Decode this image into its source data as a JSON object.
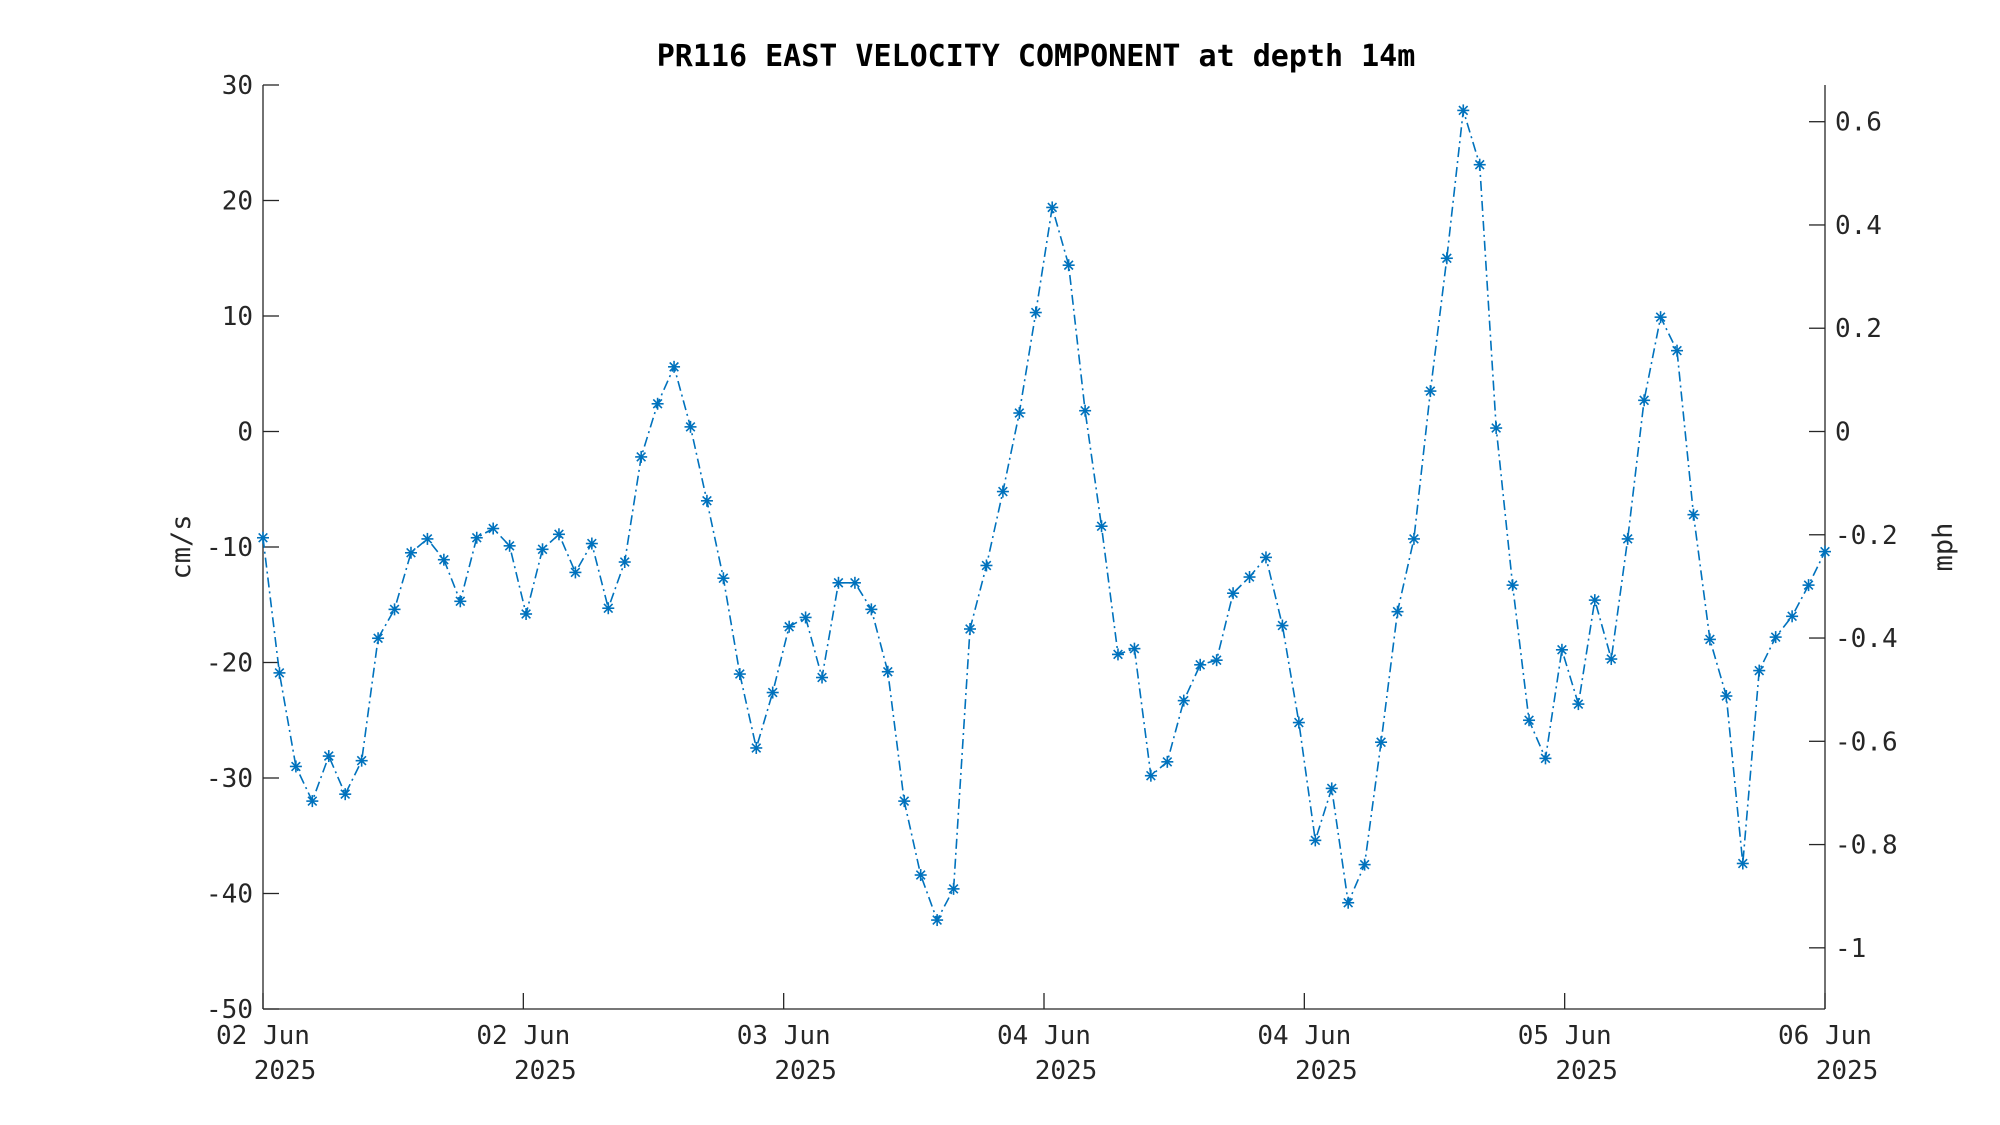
{
  "chart_data": {
    "type": "line",
    "title": "PR116 EAST VELOCITY COMPONENT at depth 14m",
    "ylabel": "cm/s",
    "ylabel_right": "mph",
    "ylim": [
      -50,
      30
    ],
    "yticks": [
      -50,
      -40,
      -30,
      -20,
      -10,
      0,
      10,
      20,
      30
    ],
    "yticks_right": [
      0.6,
      0.4,
      0.2,
      0,
      -0.2,
      -0.4,
      -0.6,
      -0.8,
      -1
    ],
    "yticks_right_labels": [
      "0.6",
      "0.4",
      "0.2",
      "0",
      "-0.2",
      "-0.4",
      "-0.6",
      "-0.8",
      "-1"
    ],
    "x_range_hours": [
      0,
      96
    ],
    "xticks": [
      {
        "day": "02 Jun",
        "year": "2025"
      },
      {
        "day": "02 Jun",
        "year": "2025"
      },
      {
        "day": "03 Jun",
        "year": "2025"
      },
      {
        "day": "04 Jun",
        "year": "2025"
      },
      {
        "day": "04 Jun",
        "year": "2025"
      },
      {
        "day": "05 Jun",
        "year": "2025"
      },
      {
        "day": "06 Jun",
        "year": "2025"
      }
    ],
    "grid": false,
    "series": [
      {
        "color": "#0072BD",
        "line_style": "dash-dot",
        "marker": "asterisk",
        "values": [
          -9.2,
          -20.9,
          -29.0,
          -32.0,
          -28.1,
          -31.4,
          -28.5,
          -17.9,
          -15.4,
          -10.5,
          -9.3,
          -11.1,
          -14.7,
          -9.2,
          -8.4,
          -9.9,
          -15.8,
          -10.2,
          -8.9,
          -12.2,
          -9.7,
          -15.3,
          -11.3,
          -2.2,
          2.4,
          5.6,
          0.4,
          -6.0,
          -12.7,
          -21.0,
          -27.4,
          -22.6,
          -16.9,
          -16.1,
          -21.3,
          -13.1,
          -13.1,
          -15.4,
          -20.8,
          -32.0,
          -38.4,
          -42.3,
          -39.6,
          -17.1,
          -11.6,
          -5.2,
          1.6,
          10.3,
          19.4,
          14.4,
          1.8,
          -8.2,
          -19.3,
          -18.8,
          -29.8,
          -28.6,
          -23.3,
          -20.2,
          -19.8,
          -14.0,
          -12.6,
          -10.9,
          -16.8,
          -25.2,
          -35.4,
          -30.9,
          -40.8,
          -37.5,
          -26.9,
          -15.6,
          -9.3,
          3.5,
          15.0,
          27.8,
          23.1,
          0.3,
          -13.3,
          -25.0,
          -28.3,
          -18.9,
          -23.6,
          -14.6,
          -19.7,
          -9.3,
          2.7,
          9.9,
          7.0,
          -7.2,
          -18.0,
          -22.9,
          -37.4,
          -20.7,
          -17.8,
          -16.0,
          -13.3,
          -10.4
        ]
      }
    ]
  }
}
